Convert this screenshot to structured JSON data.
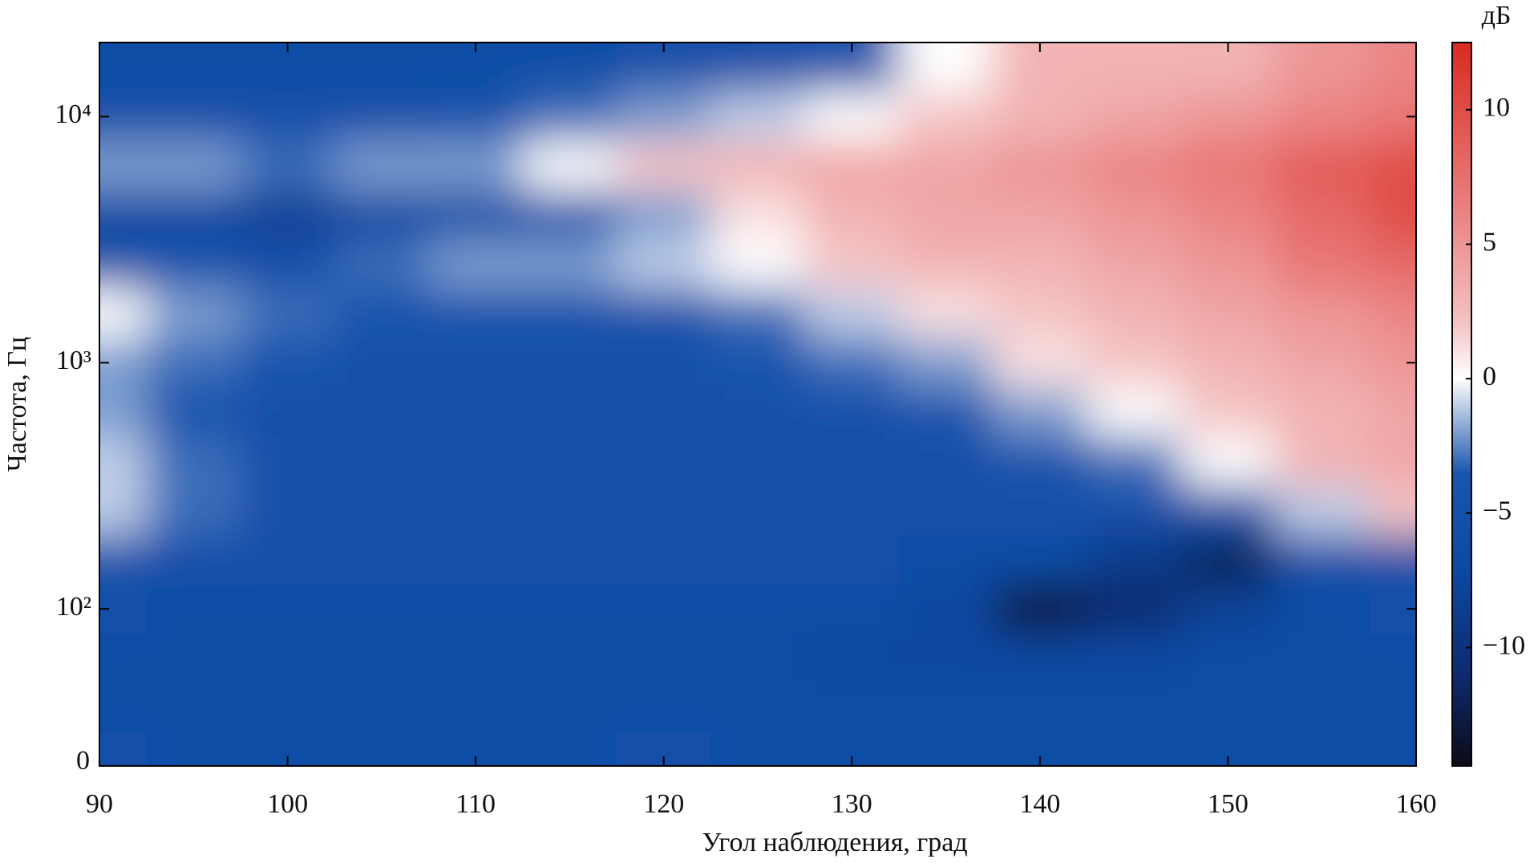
{
  "chart_data": {
    "type": "heatmap",
    "xlabel": "Угол наблюдения, град",
    "ylabel": "Частота, Гц",
    "colorbar_title": "дБ",
    "xlim": [
      90,
      160
    ],
    "xticks": [
      90,
      100,
      110,
      120,
      130,
      140,
      150,
      160
    ],
    "ylim": [
      23,
      20000
    ],
    "ylog": true,
    "ybottom_label": "0",
    "yticks": [
      {
        "value": 100,
        "label": "10²"
      },
      {
        "value": 1000,
        "label": "10³"
      },
      {
        "value": 10000,
        "label": "10⁴"
      }
    ],
    "zlim": [
      -14.4,
      12.5
    ],
    "zticks": [
      {
        "value": -10,
        "label": "−10"
      },
      {
        "value": -5,
        "label": "−5"
      },
      0,
      5,
      10
    ],
    "colormap": [
      {
        "value": -14.4,
        "color": "#0b0b16"
      },
      {
        "value": -11,
        "color": "#0d2a70"
      },
      {
        "value": -7,
        "color": "#0d4aa3"
      },
      {
        "value": -3.5,
        "color": "#1a55ad"
      },
      {
        "value": 0,
        "color": "#ffffff"
      },
      {
        "value": 2,
        "color": "#f4c4c4"
      },
      {
        "value": 6,
        "color": "#eb8585"
      },
      {
        "value": 12.5,
        "color": "#d92a20"
      }
    ],
    "x": [
      90,
      95,
      100,
      105,
      110,
      115,
      120,
      125,
      130,
      135,
      140,
      145,
      150,
      155,
      160
    ],
    "y": [
      25,
      40,
      63,
      100,
      160,
      250,
      400,
      630,
      1000,
      1600,
      2500,
      4000,
      6300,
      10000,
      16000
    ],
    "z": [
      [
        -5,
        -6,
        -6,
        -6,
        -6,
        -6,
        -5,
        -6,
        -6,
        -6,
        -6,
        -6,
        -6,
        -6,
        -6
      ],
      [
        -6,
        -6,
        -6,
        -6,
        -6,
        -6,
        -6,
        -6,
        -6,
        -6,
        -6,
        -6,
        -6,
        -6,
        -6
      ],
      [
        -6,
        -6,
        -6,
        -6,
        -6,
        -6,
        -6,
        -6,
        -7,
        -7,
        -7,
        -7,
        -6,
        -6,
        -6
      ],
      [
        -5,
        -6,
        -6,
        -6,
        -6,
        -6,
        -6,
        -6,
        -6,
        -7,
        -13,
        -11,
        -8,
        -6,
        -5
      ],
      [
        -4,
        -5,
        -5,
        -5,
        -5,
        -5,
        -5,
        -5,
        -5,
        -6,
        -6,
        -9,
        -12,
        -5,
        -5
      ],
      [
        -1,
        -3,
        -5,
        -5,
        -5,
        -5,
        -5,
        -5,
        -5,
        -5,
        -5,
        -5,
        -4,
        -1,
        2
      ],
      [
        -1,
        -3,
        -5,
        -5,
        -5,
        -5,
        -5,
        -5,
        -5,
        -5,
        -4,
        -3,
        0,
        3,
        4
      ],
      [
        -2,
        -4,
        -5,
        -5,
        -5,
        -5,
        -5,
        -5,
        -5,
        -4,
        -2,
        0,
        2,
        3,
        4
      ],
      [
        -2,
        -3,
        -4,
        -5,
        -5,
        -5,
        -5,
        -4,
        -3,
        -2,
        1,
        2,
        3,
        4,
        5
      ],
      [
        0,
        -2,
        -3,
        -4,
        -4,
        -4,
        -4,
        -3,
        -1,
        1,
        2,
        3,
        4,
        5,
        6
      ],
      [
        -4,
        -4,
        -5,
        -3,
        -2,
        -2,
        -1,
        0,
        2,
        3,
        3,
        4,
        5,
        7,
        8
      ],
      [
        -7,
        -7,
        -8,
        -7,
        -6,
        -4,
        -2,
        1,
        3,
        4,
        4,
        5,
        6,
        8,
        10
      ],
      [
        -2,
        -2,
        -3,
        -2,
        -2,
        0,
        2,
        3,
        4,
        4,
        5,
        6,
        7,
        9,
        10
      ],
      [
        -5,
        -5,
        -5,
        -5,
        -4,
        -3,
        -2,
        -1,
        0,
        2,
        3,
        4,
        5,
        6,
        7
      ],
      [
        -6,
        -6,
        -6,
        -6,
        -6,
        -6,
        -5,
        -5,
        -4,
        0,
        3,
        3,
        3,
        5,
        6
      ]
    ]
  }
}
